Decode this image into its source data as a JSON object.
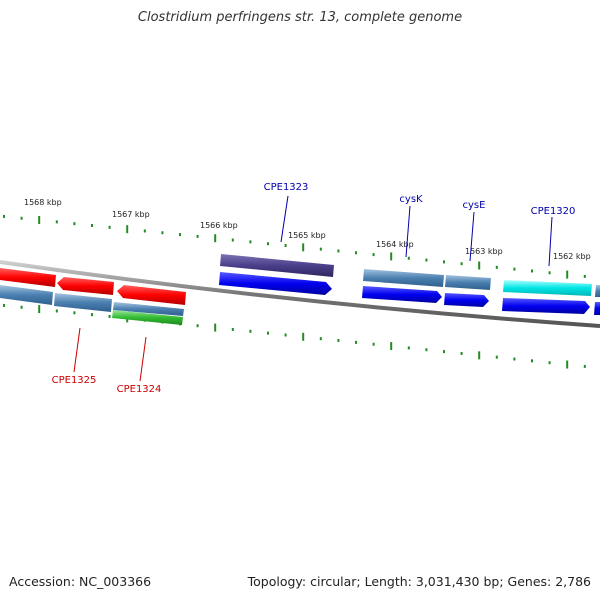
{
  "title": "Clostridium perfringens str. 13, complete genome",
  "accession_label": "Accession: NC_003366",
  "summary_label": "Topology: circular; Length: 3,031,430 bp; Genes: 2,786",
  "kbp_labels": [
    "1568 kbp",
    "1567 kbp",
    "1566 kbp",
    "1565 kbp",
    "1564 kbp",
    "1563 kbp",
    "1562 kbp"
  ],
  "genes": [
    {
      "label": "CPE1325",
      "color": "#cc0000"
    },
    {
      "label": "CPE1324",
      "color": "#cc0000"
    },
    {
      "label": "CPE1323",
      "color": "#0000aa"
    },
    {
      "label": "cysK",
      "color": "#0000aa"
    },
    {
      "label": "cysE",
      "color": "#0000aa"
    },
    {
      "label": "CPE1320",
      "color": "#0000aa"
    }
  ],
  "colors": {
    "backbone": "#888888",
    "tick": "#228b22",
    "forward_cds": "#0000ee",
    "reverse_cds": "#ee0000",
    "steelblue_feature": "#4a7fb0",
    "purple_feature": "#4a3f8a",
    "cyan_feature": "#00e5e5",
    "green_feature": "#33bb33"
  }
}
